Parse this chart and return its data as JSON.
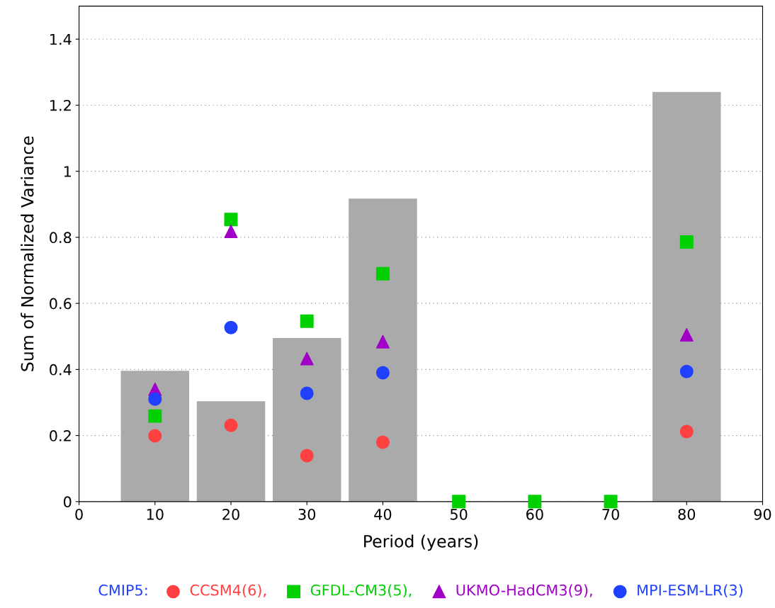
{
  "chart_data": {
    "type": "scatter",
    "xlabel": "Period (years)",
    "ylabel": "Sum of Normalized Variance",
    "x": [
      10,
      20,
      30,
      40,
      50,
      60,
      70,
      80
    ],
    "xlim": [
      0,
      90
    ],
    "xticks": [
      0,
      10,
      20,
      30,
      40,
      50,
      60,
      70,
      80,
      90
    ],
    "ylim": [
      0,
      1.5
    ],
    "yticks": [
      0,
      0.2,
      0.4,
      0.6,
      0.8,
      1,
      1.2,
      1.4
    ],
    "grid": "y",
    "legend": "bottom",
    "legend_title": "CMIP5:",
    "series": [
      {
        "type": "bar",
        "color": "#aaaaaa",
        "values": [
          0.396,
          0.304,
          0.495,
          0.917,
          0,
          0,
          0,
          1.24
        ]
      },
      {
        "name": "CCSM4(6),",
        "color": "#ff4040",
        "marker": "circle",
        "values": [
          0.199,
          0.231,
          0.139,
          0.18,
          null,
          null,
          null,
          0.212
        ]
      },
      {
        "name": "GFDL-CM3(5),",
        "color": "#00d000",
        "marker": "square",
        "values": [
          0.259,
          0.854,
          0.546,
          0.69,
          0,
          0,
          0,
          0.786
        ]
      },
      {
        "name": "UKMO-HadCM3(9),",
        "color": "#a000c8",
        "marker": "triangle",
        "values": [
          0.34,
          0.818,
          0.433,
          0.484,
          null,
          null,
          null,
          0.505
        ]
      },
      {
        "name": "MPI-ESM-LR(3)",
        "color": "#2040ff",
        "marker": "circle",
        "values": [
          0.31,
          0.527,
          0.328,
          0.39,
          null,
          null,
          null,
          0.394
        ]
      }
    ]
  }
}
